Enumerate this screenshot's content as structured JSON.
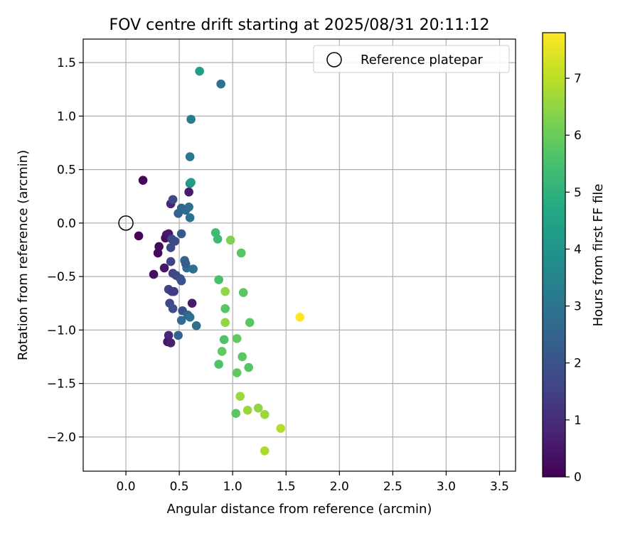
{
  "chart_data": {
    "type": "scatter",
    "title": "FOV centre drift starting at 2025/08/31 20:11:12",
    "xlabel": "Angular distance from reference (arcmin)",
    "ylabel": "Rotation from reference (arcmin)",
    "xlim": [
      -0.4,
      3.65
    ],
    "ylim": [
      -2.32,
      1.72
    ],
    "xticks": [
      0.0,
      0.5,
      1.0,
      1.5,
      2.0,
      2.5,
      3.0,
      3.5
    ],
    "xtick_labels": [
      "0.0",
      "0.5",
      "1.0",
      "1.5",
      "2.0",
      "2.5",
      "3.0",
      "3.5"
    ],
    "yticks": [
      1.5,
      1.0,
      0.5,
      0.0,
      -0.5,
      -1.0,
      -1.5,
      -2.0
    ],
    "ytick_labels": [
      "1.5",
      "1.0",
      "0.5",
      "0.0",
      "−0.5",
      "−1.0",
      "−1.5",
      "−2.0"
    ],
    "grid": true,
    "legend": {
      "placement": "upper-right",
      "entries": [
        {
          "label": "Reference platepar",
          "x": 0.0,
          "y": 0.0
        }
      ]
    },
    "colorbar": {
      "label": "Hours from first FF file",
      "colormap": "viridis",
      "range": [
        0,
        7.8
      ],
      "ticks": [
        0,
        1,
        2,
        3,
        4,
        5,
        6,
        7
      ],
      "tick_labels": [
        "0",
        "1",
        "2",
        "3",
        "4",
        "5",
        "6",
        "7"
      ]
    },
    "points": [
      {
        "x": 0.16,
        "y": 0.4,
        "c": 0.1
      },
      {
        "x": 0.12,
        "y": -0.12,
        "c": 0.1
      },
      {
        "x": 0.31,
        "y": -0.22,
        "c": 0.2
      },
      {
        "x": 0.3,
        "y": -0.28,
        "c": 0.2
      },
      {
        "x": 0.26,
        "y": -0.48,
        "c": 0.3
      },
      {
        "x": 0.36,
        "y": -0.42,
        "c": 0.5
      },
      {
        "x": 0.37,
        "y": -0.14,
        "c": 0.3
      },
      {
        "x": 0.38,
        "y": -0.11,
        "c": 0.4
      },
      {
        "x": 0.4,
        "y": -0.1,
        "c": 0.5
      },
      {
        "x": 0.39,
        "y": -1.11,
        "c": 0.5
      },
      {
        "x": 0.4,
        "y": -1.05,
        "c": 0.8
      },
      {
        "x": 0.42,
        "y": -1.12,
        "c": 0.7
      },
      {
        "x": 0.62,
        "y": -0.75,
        "c": 0.6
      },
      {
        "x": 0.59,
        "y": 0.29,
        "c": 0.6
      },
      {
        "x": 0.42,
        "y": 0.18,
        "c": 0.8
      },
      {
        "x": 0.44,
        "y": 0.22,
        "c": 1.7
      },
      {
        "x": 0.43,
        "y": -0.15,
        "c": 1.6
      },
      {
        "x": 0.46,
        "y": -0.17,
        "c": 1.8
      },
      {
        "x": 0.42,
        "y": -0.23,
        "c": 1.7
      },
      {
        "x": 0.42,
        "y": -0.36,
        "c": 1.5
      },
      {
        "x": 0.44,
        "y": -0.47,
        "c": 1.6
      },
      {
        "x": 0.47,
        "y": -0.49,
        "c": 1.7
      },
      {
        "x": 0.45,
        "y": -0.64,
        "c": 1.3
      },
      {
        "x": 0.4,
        "y": -0.62,
        "c": 1.6
      },
      {
        "x": 0.43,
        "y": -0.64,
        "c": 1.4
      },
      {
        "x": 0.41,
        "y": -0.75,
        "c": 1.8
      },
      {
        "x": 0.44,
        "y": -0.8,
        "c": 1.9
      },
      {
        "x": 0.51,
        "y": -0.52,
        "c": 1.9
      },
      {
        "x": 0.52,
        "y": -0.54,
        "c": 2.0
      },
      {
        "x": 0.53,
        "y": -0.82,
        "c": 1.9
      },
      {
        "x": 0.52,
        "y": -0.1,
        "c": 2.2
      },
      {
        "x": 0.49,
        "y": 0.09,
        "c": 2.4
      },
      {
        "x": 0.52,
        "y": 0.14,
        "c": 2.6
      },
      {
        "x": 0.56,
        "y": 0.12,
        "c": 2.7
      },
      {
        "x": 0.59,
        "y": 0.15,
        "c": 2.8
      },
      {
        "x": 0.6,
        "y": 0.05,
        "c": 3.0
      },
      {
        "x": 0.55,
        "y": -0.35,
        "c": 2.5
      },
      {
        "x": 0.57,
        "y": -0.42,
        "c": 2.7
      },
      {
        "x": 0.63,
        "y": -0.43,
        "c": 2.9
      },
      {
        "x": 0.56,
        "y": -0.38,
        "c": 2.3
      },
      {
        "x": 0.52,
        "y": -0.91,
        "c": 2.8
      },
      {
        "x": 0.58,
        "y": -0.86,
        "c": 2.6
      },
      {
        "x": 0.6,
        "y": -0.88,
        "c": 2.9
      },
      {
        "x": 0.49,
        "y": -1.05,
        "c": 2.5
      },
      {
        "x": 0.66,
        "y": -0.96,
        "c": 2.8
      },
      {
        "x": 0.6,
        "y": 0.62,
        "c": 3.1
      },
      {
        "x": 0.61,
        "y": 0.97,
        "c": 3.2
      },
      {
        "x": 0.6,
        "y": 0.37,
        "c": 3.6
      },
      {
        "x": 0.61,
        "y": 0.38,
        "c": 4.3
      },
      {
        "x": 0.89,
        "y": 1.3,
        "c": 3.0
      },
      {
        "x": 0.69,
        "y": 1.42,
        "c": 4.4
      },
      {
        "x": 0.84,
        "y": -0.09,
        "c": 5.4
      },
      {
        "x": 0.86,
        "y": -0.15,
        "c": 5.3
      },
      {
        "x": 0.98,
        "y": -0.16,
        "c": 6.3
      },
      {
        "x": 1.08,
        "y": -0.28,
        "c": 5.7
      },
      {
        "x": 0.87,
        "y": -0.53,
        "c": 5.5
      },
      {
        "x": 0.93,
        "y": -0.64,
        "c": 6.5
      },
      {
        "x": 1.1,
        "y": -0.65,
        "c": 5.8
      },
      {
        "x": 0.93,
        "y": -0.8,
        "c": 5.7
      },
      {
        "x": 0.93,
        "y": -0.93,
        "c": 6.5
      },
      {
        "x": 1.16,
        "y": -0.93,
        "c": 5.8
      },
      {
        "x": 0.92,
        "y": -1.09,
        "c": 5.6
      },
      {
        "x": 1.04,
        "y": -1.08,
        "c": 5.9
      },
      {
        "x": 0.9,
        "y": -1.2,
        "c": 5.9
      },
      {
        "x": 1.09,
        "y": -1.25,
        "c": 5.8
      },
      {
        "x": 0.87,
        "y": -1.32,
        "c": 5.6
      },
      {
        "x": 1.15,
        "y": -1.35,
        "c": 5.7
      },
      {
        "x": 1.04,
        "y": -1.4,
        "c": 5.9
      },
      {
        "x": 1.07,
        "y": -1.62,
        "c": 6.6
      },
      {
        "x": 1.14,
        "y": -1.75,
        "c": 6.6
      },
      {
        "x": 1.24,
        "y": -1.73,
        "c": 6.5
      },
      {
        "x": 1.03,
        "y": -1.78,
        "c": 5.8
      },
      {
        "x": 1.3,
        "y": -1.79,
        "c": 6.6
      },
      {
        "x": 1.45,
        "y": -1.92,
        "c": 6.9
      },
      {
        "x": 1.3,
        "y": -2.13,
        "c": 6.8
      },
      {
        "x": 1.63,
        "y": -0.88,
        "c": 7.8
      }
    ]
  }
}
